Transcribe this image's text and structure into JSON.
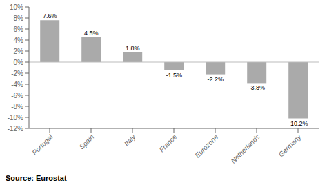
{
  "chart_data": {
    "type": "bar",
    "categories": [
      "Portugal",
      "Spain",
      "Italy",
      "France",
      "Eurozone",
      "Netherlands",
      "Germany"
    ],
    "values": [
      7.6,
      4.5,
      1.8,
      -1.5,
      -2.2,
      -3.8,
      -10.2
    ],
    "value_labels": [
      "7.6%",
      "4.5%",
      "1.8%",
      "-1.5%",
      "-2.2%",
      "-3.8%",
      "-10.2%"
    ],
    "data_labels": true,
    "color": "#aaaaaa",
    "ylim": [
      -12,
      10
    ],
    "yticks": [
      {
        "value": -12,
        "label": "-12%"
      },
      {
        "value": -10,
        "label": "-10%"
      },
      {
        "value": -8,
        "label": "-8%"
      },
      {
        "value": -6,
        "label": "-6%"
      },
      {
        "value": -4,
        "label": "-4%"
      },
      {
        "value": -2,
        "label": "-2%"
      },
      {
        "value": 0,
        "label": "0%"
      },
      {
        "value": 2,
        "label": "2%"
      },
      {
        "value": 4,
        "label": "4%"
      },
      {
        "value": 6,
        "label": "6%"
      },
      {
        "value": 8,
        "label": "8%"
      },
      {
        "value": 10,
        "label": "10%"
      }
    ],
    "grid": false,
    "annotations": [
      "Source: Eurostat"
    ]
  }
}
